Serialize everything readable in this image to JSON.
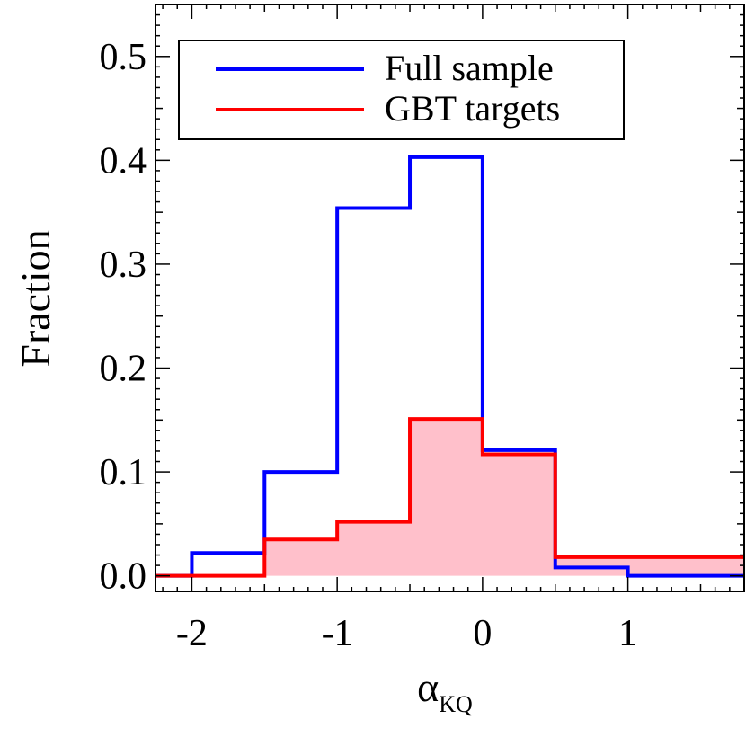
{
  "chart_data": {
    "type": "histogram",
    "xlabel": "α",
    "xlabel_subscript": "KQ",
    "ylabel": "Fraction",
    "xlim": [
      -2.25,
      1.8
    ],
    "ylim": [
      -0.015,
      0.55
    ],
    "bin_edges": [
      -2.5,
      -2.0,
      -1.5,
      -1.0,
      -0.5,
      0.0,
      0.5,
      1.0,
      1.5,
      2.0
    ],
    "xticks": [
      -2,
      -1,
      0,
      1
    ],
    "xtick_labels": [
      "-2",
      "-1",
      "0",
      "1"
    ],
    "yticks": [
      0.0,
      0.1,
      0.2,
      0.3,
      0.4,
      0.5
    ],
    "ytick_labels": [
      "0.0",
      "0.1",
      "0.2",
      "0.3",
      "0.4",
      "0.5"
    ],
    "legend_position": "top-left",
    "series": [
      {
        "name": "Full sample",
        "color": "#0000ff",
        "filled": false,
        "values": [
          0.0,
          0.022,
          0.1,
          0.354,
          0.403,
          0.121,
          0.008,
          0.0,
          0.0
        ]
      },
      {
        "name": "GBT targets",
        "color": "#ff0000",
        "fill_color": "#ffc0cb",
        "filled": true,
        "values": [
          0.0,
          0.0,
          0.035,
          0.052,
          0.151,
          0.117,
          0.018,
          0.018,
          0.018
        ]
      }
    ]
  }
}
